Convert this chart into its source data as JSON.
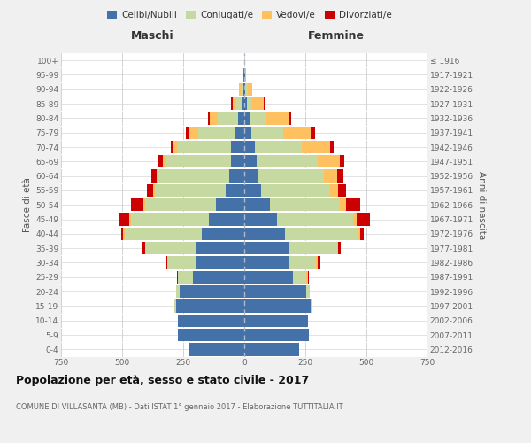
{
  "age_groups": [
    "0-4",
    "5-9",
    "10-14",
    "15-19",
    "20-24",
    "25-29",
    "30-34",
    "35-39",
    "40-44",
    "45-49",
    "50-54",
    "55-59",
    "60-64",
    "65-69",
    "70-74",
    "75-79",
    "80-84",
    "85-89",
    "90-94",
    "95-99",
    "100+"
  ],
  "birth_years": [
    "2012-2016",
    "2007-2011",
    "2002-2006",
    "1997-2001",
    "1992-1996",
    "1987-1991",
    "1982-1986",
    "1977-1981",
    "1972-1976",
    "1967-1971",
    "1962-1966",
    "1957-1961",
    "1952-1956",
    "1947-1951",
    "1942-1946",
    "1937-1941",
    "1932-1936",
    "1927-1931",
    "1922-1926",
    "1917-1921",
    "≤ 1916"
  ],
  "maschi": {
    "celibi": [
      230,
      270,
      270,
      280,
      265,
      210,
      195,
      195,
      175,
      145,
      115,
      75,
      60,
      55,
      55,
      35,
      25,
      8,
      5,
      2,
      0
    ],
    "coniugati": [
      0,
      0,
      0,
      5,
      15,
      60,
      120,
      210,
      315,
      320,
      290,
      290,
      290,
      265,
      215,
      155,
      85,
      25,
      10,
      2,
      0
    ],
    "vedovi": [
      0,
      0,
      0,
      0,
      0,
      0,
      0,
      0,
      5,
      5,
      8,
      10,
      10,
      15,
      20,
      35,
      30,
      15,
      5,
      0,
      0
    ],
    "divorziati": [
      0,
      0,
      0,
      0,
      0,
      5,
      5,
      10,
      10,
      40,
      50,
      25,
      20,
      20,
      10,
      15,
      8,
      5,
      0,
      0,
      0
    ]
  },
  "femmine": {
    "nubili": [
      225,
      265,
      260,
      270,
      255,
      200,
      185,
      185,
      165,
      135,
      105,
      70,
      55,
      50,
      45,
      30,
      20,
      10,
      5,
      2,
      0
    ],
    "coniugate": [
      0,
      0,
      0,
      5,
      12,
      55,
      110,
      195,
      300,
      310,
      285,
      280,
      270,
      250,
      190,
      130,
      70,
      20,
      8,
      2,
      0
    ],
    "vedove": [
      0,
      0,
      0,
      0,
      0,
      5,
      5,
      5,
      10,
      15,
      25,
      35,
      55,
      90,
      115,
      110,
      95,
      50,
      20,
      3,
      0
    ],
    "divorziate": [
      0,
      0,
      0,
      0,
      0,
      5,
      10,
      10,
      15,
      55,
      60,
      30,
      25,
      20,
      15,
      20,
      8,
      5,
      0,
      0,
      0
    ]
  },
  "colors": {
    "celibi": "#4472a8",
    "coniugati": "#c5d9a0",
    "vedovi": "#ffc060",
    "divorziati": "#cc0000"
  },
  "title": "Popolazione per età, sesso e stato civile - 2017",
  "subtitle": "COMUNE DI VILLASANTA (MB) - Dati ISTAT 1° gennaio 2017 - Elaborazione TUTTITALIA.IT",
  "xlabel_left": "Maschi",
  "xlabel_right": "Femmine",
  "ylabel_left": "Fasce di età",
  "ylabel_right": "Anni di nascita",
  "xlim": 750,
  "bg_color": "#f0f0f0",
  "plot_bg": "#ffffff",
  "legend_labels": [
    "Celibi/Nubili",
    "Coniugati/e",
    "Vedovi/e",
    "Divorziati/e"
  ]
}
